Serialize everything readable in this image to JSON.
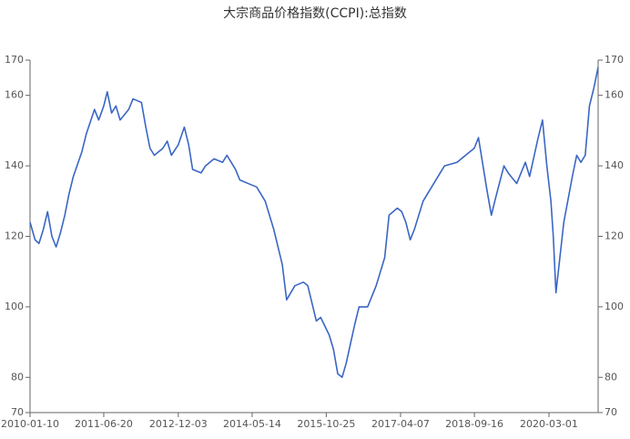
{
  "chart_data": {
    "type": "line",
    "title": "大宗商品价格指数(CCPI):总指数",
    "x": [
      "2010-01-10",
      "2010-02-15",
      "2010-03-15",
      "2010-04-15",
      "2010-05-15",
      "2010-06-15",
      "2010-07-15",
      "2010-08-15",
      "2010-09-15",
      "2010-10-15",
      "2010-11-15",
      "2011-01-15",
      "2011-02-15",
      "2011-04-15",
      "2011-05-15",
      "2011-06-20",
      "2011-07-15",
      "2011-08-15",
      "2011-09-15",
      "2011-10-15",
      "2011-12-15",
      "2012-01-15",
      "2012-03-15",
      "2012-04-15",
      "2012-05-15",
      "2012-06-15",
      "2012-08-15",
      "2012-09-15",
      "2012-10-15",
      "2012-12-03",
      "2013-01-15",
      "2013-02-15",
      "2013-03-15",
      "2013-05-15",
      "2013-06-15",
      "2013-08-15",
      "2013-10-15",
      "2013-11-15",
      "2014-01-15",
      "2014-02-15",
      "2014-04-15",
      "2014-06-15",
      "2014-08-15",
      "2014-10-15",
      "2014-12-15",
      "2015-01-15",
      "2015-03-15",
      "2015-05-15",
      "2015-06-15",
      "2015-08-15",
      "2015-09-15",
      "2015-11-15",
      "2015-12-15",
      "2016-01-15",
      "2016-02-15",
      "2016-03-15",
      "2016-05-15",
      "2016-06-15",
      "2016-08-15",
      "2016-10-15",
      "2016-12-15",
      "2017-01-15",
      "2017-03-15",
      "2017-04-15",
      "2017-05-15",
      "2017-06-15",
      "2017-07-15",
      "2017-09-15",
      "2017-11-15",
      "2018-01-15",
      "2018-02-15",
      "2018-05-15",
      "2018-07-15",
      "2018-09-15",
      "2018-10-15",
      "2018-12-15",
      "2019-01-15",
      "2019-02-15",
      "2019-04-15",
      "2019-05-15",
      "2019-07-15",
      "2019-09-15",
      "2019-10-15",
      "2019-12-15",
      "2020-01-15",
      "2020-02-15",
      "2020-03-15",
      "2020-04-01",
      "2020-04-20",
      "2020-06-15",
      "2020-08-15",
      "2020-09-15",
      "2020-10-15",
      "2020-11-15",
      "2020-12-15",
      "2021-01-15",
      "2021-02-15"
    ],
    "series": [
      {
        "name": "总指数",
        "color": "#3a66c4",
        "values": [
          124,
          119,
          118,
          122,
          127,
          120,
          117,
          121,
          126,
          132,
          137,
          144,
          149,
          156,
          153,
          157,
          161,
          155,
          157,
          153,
          156,
          159,
          158,
          151,
          145,
          143,
          145,
          147,
          143,
          146,
          151,
          146,
          139,
          138,
          140,
          142,
          141,
          143,
          139,
          136,
          135,
          134,
          130,
          122,
          112,
          102,
          106,
          107,
          106,
          96,
          97,
          92,
          88,
          81,
          80,
          84,
          95,
          100,
          100,
          106,
          114,
          126,
          128,
          127,
          124,
          119,
          122,
          130,
          134,
          138,
          140,
          141,
          143,
          145,
          148,
          133,
          126,
          131,
          140,
          138,
          135,
          141,
          137,
          148,
          153,
          140,
          130,
          120,
          104,
          124,
          137,
          143,
          141,
          143,
          157,
          162,
          168
        ]
      }
    ],
    "xlim": [
      "2010-01-10",
      "2021-02-15"
    ],
    "xticks": [
      "2010-01-10",
      "2011-06-20",
      "2012-12-03",
      "2014-05-14",
      "2015-10-25",
      "2017-04-07",
      "2018-09-16",
      "2020-03-01"
    ],
    "ylim": [
      70,
      170
    ],
    "yticks": [
      70,
      80,
      100,
      120,
      140,
      160,
      170
    ],
    "grid": false
  }
}
